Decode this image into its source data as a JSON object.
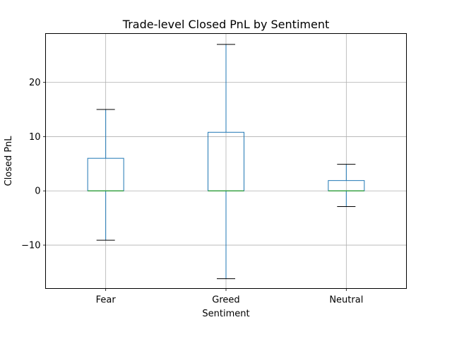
{
  "chart_data": {
    "type": "box",
    "title": "Trade-level Closed PnL by Sentiment",
    "xlabel": "Sentiment",
    "ylabel": "Closed PnL",
    "ylim": [
      -18,
      29
    ],
    "yticks": [
      -10,
      0,
      10,
      20
    ],
    "grid": true,
    "categories": [
      "Fear",
      "Greed",
      "Neutral"
    ],
    "boxes": [
      {
        "category": "Fear",
        "whisker_low": -9.1,
        "q1": 0,
        "median": 0,
        "q3": 6.0,
        "whisker_high": 15.0
      },
      {
        "category": "Greed",
        "whisker_low": -16.2,
        "q1": 0,
        "median": 0,
        "q3": 10.8,
        "whisker_high": 27.0
      },
      {
        "category": "Neutral",
        "whisker_low": -2.9,
        "q1": 0,
        "median": 0,
        "q3": 1.9,
        "whisker_high": 4.9
      }
    ],
    "colors": {
      "box": "#1f77b4",
      "median": "#2ca02c",
      "cap": "#000000",
      "grid": "#b0b0b0"
    }
  }
}
